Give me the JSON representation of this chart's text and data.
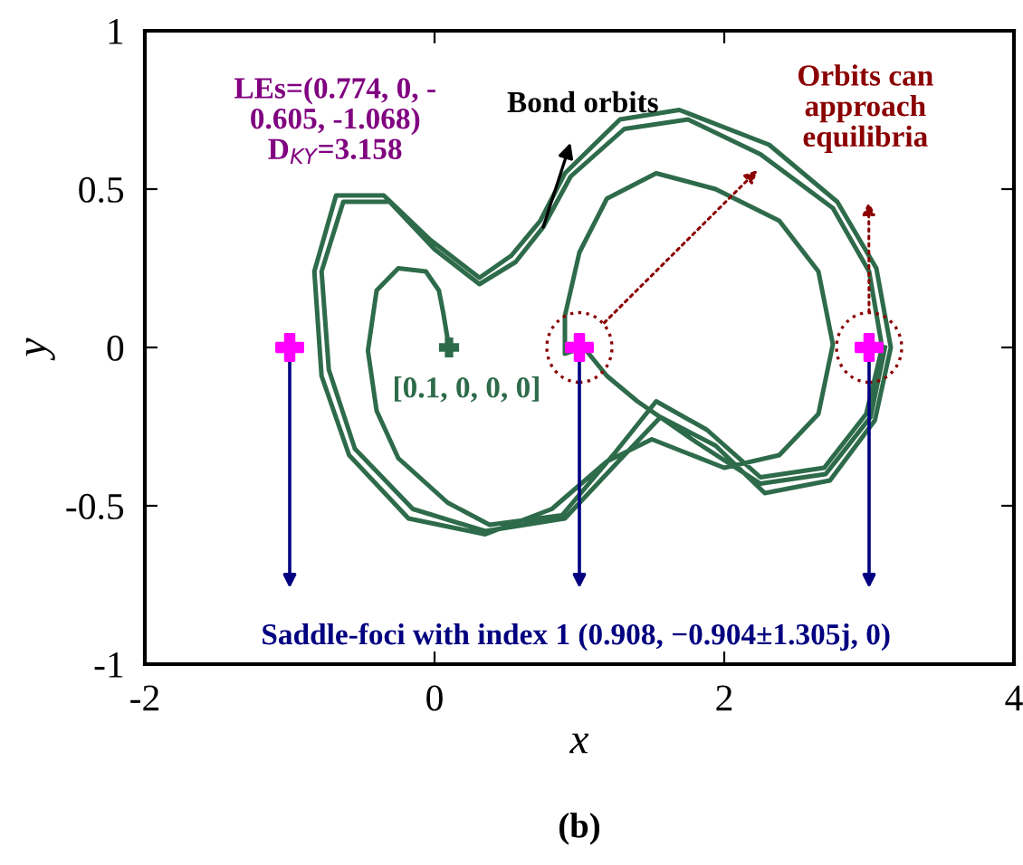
{
  "chart_data": {
    "type": "line",
    "xlabel": "x",
    "ylabel": "y",
    "xlim": [
      -2,
      4
    ],
    "xticks": [
      -2,
      0,
      2,
      4
    ],
    "ylim": [
      -1,
      1
    ],
    "yticks": [
      -1,
      -0.5,
      0,
      0.5,
      1
    ],
    "grid": false,
    "series": [
      {
        "color": "#2e6b4a",
        "x": [
          0.1,
          0.06,
          0.03,
          -0.06,
          -0.25,
          -0.4,
          -0.46,
          -0.4,
          -0.25,
          0.09,
          0.38,
          0.88,
          1.25,
          1.53,
          1.88,
          2.25,
          2.69,
          2.98,
          3.09,
          3.0,
          2.75,
          2.25,
          1.75,
          1.31,
          0.94,
          0.75,
          0.56,
          0.31,
          0.0,
          -0.31,
          -0.63,
          -0.78,
          -0.73,
          -0.55,
          -0.15,
          0.35,
          0.9,
          1.31,
          1.56,
          1.94,
          2.28,
          2.73,
          3.04,
          3.15,
          3.05,
          2.78,
          2.31,
          1.69,
          1.28,
          0.9,
          0.73,
          0.53,
          0.31,
          -0.03,
          -0.35,
          -0.68,
          -0.83,
          -0.78,
          -0.59,
          -0.18,
          0.35,
          0.81,
          1.19,
          1.5,
          2.0,
          2.38,
          2.65,
          2.75,
          2.65,
          2.38,
          1.94,
          1.53,
          1.19,
          1.0,
          0.9,
          0.9,
          1.03,
          1.19,
          1.4,
          1.81,
          2.25,
          2.7,
          3.01,
          3.11
        ],
        "values": [
          0.0,
          0.11,
          0.18,
          0.24,
          0.25,
          0.18,
          -0.01,
          -0.2,
          -0.35,
          -0.49,
          -0.56,
          -0.53,
          -0.33,
          -0.17,
          -0.26,
          -0.41,
          -0.38,
          -0.21,
          0.0,
          0.24,
          0.44,
          0.61,
          0.72,
          0.69,
          0.54,
          0.38,
          0.27,
          0.2,
          0.31,
          0.46,
          0.46,
          0.24,
          -0.07,
          -0.32,
          -0.51,
          -0.58,
          -0.54,
          -0.34,
          -0.22,
          -0.31,
          -0.46,
          -0.42,
          -0.23,
          0.0,
          0.25,
          0.46,
          0.64,
          0.75,
          0.72,
          0.55,
          0.4,
          0.29,
          0.22,
          0.34,
          0.48,
          0.48,
          0.24,
          -0.09,
          -0.34,
          -0.54,
          -0.59,
          -0.51,
          -0.36,
          -0.29,
          -0.38,
          -0.34,
          -0.21,
          0.01,
          0.24,
          0.4,
          0.5,
          0.55,
          0.47,
          0.3,
          0.1,
          -0.02,
          0.0,
          -0.09,
          -0.17,
          -0.3,
          -0.43,
          -0.4,
          -0.22,
          0.0
        ]
      },
      {
        "type": "scatter",
        "color": "#ff00ff",
        "marker": "cross",
        "x": [
          -1,
          1,
          3
        ],
        "values": [
          0,
          0,
          0
        ]
      }
    ],
    "annotations": [
      "LEs=(0.774, 0, -\n0.605, -1.068)\nD$_{KY}$=3.158",
      {
        "text": "Bond orbits",
        "x": 0.75,
        "y": 0.38
      },
      "Orbits can\napproach\nequilibria",
      {
        "text": "[0.1, 0, 0, 0]",
        "x": 0.1,
        "y": 0
      },
      "Saddle-foci with index 1 (0.908, −0.904±1.305j, 0)",
      "(b)"
    ]
  }
}
